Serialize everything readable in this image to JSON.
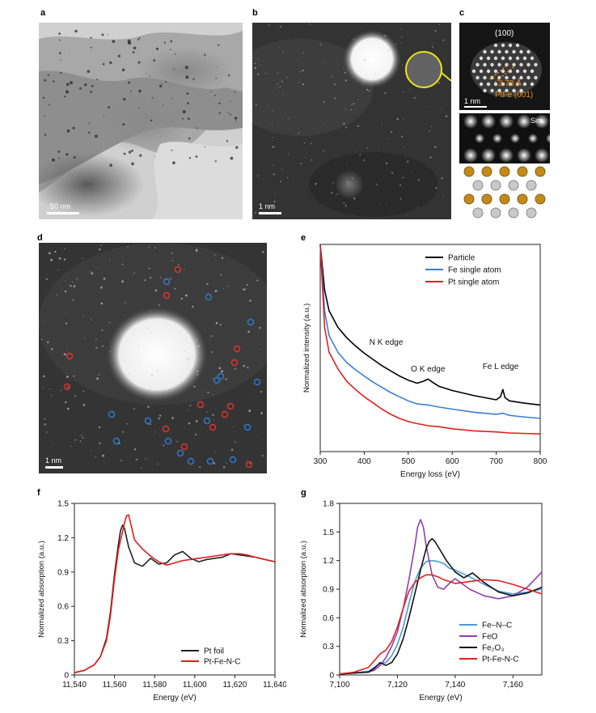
{
  "panels": {
    "a": {
      "label": "a",
      "scale_bar": "50 nm"
    },
    "b": {
      "label": "b",
      "scale_bar": "1 nm"
    },
    "c": {
      "label": "c",
      "top_label": "(100)",
      "spacing_label": "3.78 Å",
      "phase_label": "PtFe (001)",
      "scale_bar": "1 nm",
      "sim_label": "Sim."
    },
    "d": {
      "label": "d",
      "scale_bar": "1 nm"
    },
    "e": {
      "label": "e"
    },
    "f": {
      "label": "f"
    },
    "g": {
      "label": "g"
    }
  },
  "chart_data": [
    {
      "id": "e",
      "type": "line",
      "xlabel": "Energy loss (eV)",
      "ylabel": "Normalized intensity (a.u.)",
      "xlim": [
        300,
        800
      ],
      "xticks": [
        300,
        400,
        500,
        600,
        700,
        800
      ],
      "legend": "top-right",
      "annotations": [
        {
          "text": "N K edge",
          "x": 450
        },
        {
          "text": "O K edge",
          "x": 545
        },
        {
          "text": "Fe L edge",
          "x": 710
        }
      ],
      "series": [
        {
          "name": "Particle",
          "color": "#000000",
          "x": [
            300,
            310,
            320,
            340,
            360,
            380,
            400,
            420,
            440,
            460,
            480,
            500,
            520,
            535,
            545,
            555,
            570,
            600,
            650,
            700,
            710,
            715,
            720,
            730,
            760,
            800
          ],
          "y": [
            1.0,
            0.78,
            0.68,
            0.6,
            0.55,
            0.51,
            0.475,
            0.445,
            0.415,
            0.39,
            0.365,
            0.345,
            0.33,
            0.34,
            0.35,
            0.335,
            0.315,
            0.295,
            0.27,
            0.25,
            0.265,
            0.3,
            0.26,
            0.245,
            0.235,
            0.225
          ]
        },
        {
          "name": "Fe single atom",
          "color": "#3a7fd5",
          "x": [
            300,
            310,
            320,
            340,
            360,
            380,
            400,
            420,
            440,
            460,
            480,
            500,
            520,
            545,
            570,
            600,
            650,
            700,
            715,
            730,
            760,
            800
          ],
          "y": [
            1.0,
            0.68,
            0.56,
            0.48,
            0.43,
            0.395,
            0.365,
            0.335,
            0.31,
            0.285,
            0.265,
            0.245,
            0.23,
            0.225,
            0.215,
            0.205,
            0.19,
            0.18,
            0.185,
            0.175,
            0.168,
            0.16
          ]
        },
        {
          "name": "Pt single atom",
          "color": "#e0201f",
          "x": [
            300,
            310,
            320,
            340,
            360,
            380,
            400,
            420,
            440,
            460,
            480,
            500,
            520,
            545,
            570,
            600,
            650,
            700,
            730,
            760,
            800
          ],
          "y": [
            1.0,
            0.6,
            0.48,
            0.4,
            0.34,
            0.3,
            0.265,
            0.235,
            0.205,
            0.18,
            0.16,
            0.145,
            0.135,
            0.125,
            0.12,
            0.11,
            0.1,
            0.095,
            0.09,
            0.088,
            0.085
          ]
        }
      ]
    },
    {
      "id": "f",
      "type": "line",
      "xlabel": "Energy (eV)",
      "ylabel": "Normalized absorption (a.u.)",
      "xlim": [
        11540,
        11640
      ],
      "ylim": [
        0,
        1.5
      ],
      "xticks": [
        11540,
        11560,
        11580,
        11600,
        11620,
        11640
      ],
      "xticklabels": [
        "11,540",
        "11,560",
        "11,580",
        "11,600",
        "11,620",
        "11,640"
      ],
      "yticks": [
        0,
        0.3,
        0.6,
        0.9,
        1.2,
        1.5
      ],
      "legend": "bottom-right",
      "series": [
        {
          "name": "Pt foil",
          "color": "#222222",
          "x": [
            11540,
            11545,
            11550,
            11553,
            11556,
            11558,
            11560,
            11562,
            11563,
            11564,
            11565,
            11567,
            11570,
            11574,
            11578,
            11582,
            11586,
            11590,
            11594,
            11598,
            11602,
            11606,
            11610,
            11614,
            11618,
            11622,
            11626,
            11630,
            11635,
            11640
          ],
          "y": [
            0.02,
            0.04,
            0.09,
            0.16,
            0.32,
            0.55,
            0.88,
            1.15,
            1.26,
            1.31,
            1.28,
            1.12,
            0.98,
            0.95,
            1.02,
            0.97,
            0.98,
            1.05,
            1.08,
            1.02,
            0.99,
            1.01,
            1.02,
            1.03,
            1.06,
            1.05,
            1.04,
            1.03,
            1.01,
            0.99
          ]
        },
        {
          "name": "Pt-Fe-N-C",
          "color": "#e0201f",
          "x": [
            11540,
            11545,
            11550,
            11553,
            11556,
            11558,
            11560,
            11562,
            11564,
            11565,
            11566,
            11567,
            11568,
            11570,
            11574,
            11578,
            11582,
            11586,
            11590,
            11594,
            11598,
            11602,
            11606,
            11610,
            11614,
            11618,
            11622,
            11626,
            11630,
            11635,
            11640
          ],
          "y": [
            0.02,
            0.04,
            0.09,
            0.16,
            0.3,
            0.52,
            0.84,
            1.1,
            1.25,
            1.33,
            1.39,
            1.4,
            1.33,
            1.18,
            1.1,
            1.04,
            0.99,
            0.96,
            0.98,
            1.0,
            1.01,
            1.02,
            1.03,
            1.04,
            1.05,
            1.06,
            1.06,
            1.05,
            1.03,
            1.01,
            0.99
          ]
        }
      ]
    },
    {
      "id": "g",
      "type": "line",
      "xlabel": "Energy (eV)",
      "ylabel": "Normalized absorption (a.u.)",
      "xlim": [
        7100,
        7170
      ],
      "ylim": [
        0,
        1.8
      ],
      "xticks": [
        7100,
        7120,
        7140,
        7160
      ],
      "xticklabels": [
        "7,100",
        "7,120",
        "7,140",
        "7,160"
      ],
      "yticks": [
        0,
        0.3,
        0.6,
        0.9,
        1.2,
        1.5,
        1.8
      ],
      "legend": "bottom-right",
      "series": [
        {
          "name": "Fe–N–C",
          "color": "#4a9ad8",
          "x": [
            7100,
            7105,
            7110,
            7112,
            7114,
            7116,
            7118,
            7120,
            7122,
            7124,
            7126,
            7128,
            7130,
            7132,
            7134,
            7136,
            7138,
            7140,
            7145,
            7150,
            7155,
            7160,
            7165,
            7170
          ],
          "y": [
            0.01,
            0.02,
            0.04,
            0.08,
            0.12,
            0.13,
            0.2,
            0.32,
            0.5,
            0.75,
            0.98,
            1.12,
            1.19,
            1.2,
            1.19,
            1.17,
            1.12,
            1.1,
            1.03,
            0.95,
            0.88,
            0.85,
            0.87,
            0.9
          ]
        },
        {
          "name": "FeO",
          "color": "#8e3fb0",
          "x": [
            7100,
            7105,
            7110,
            7112,
            7114,
            7116,
            7118,
            7120,
            7122,
            7124,
            7126,
            7127,
            7128,
            7129,
            7130,
            7132,
            7134,
            7136,
            7138,
            7140,
            7145,
            7150,
            7155,
            7160,
            7165,
            7170
          ],
          "y": [
            0.01,
            0.02,
            0.03,
            0.05,
            0.1,
            0.18,
            0.3,
            0.45,
            0.7,
            1.0,
            1.35,
            1.55,
            1.63,
            1.55,
            1.35,
            1.05,
            0.92,
            0.9,
            0.96,
            1.01,
            0.9,
            0.83,
            0.8,
            0.83,
            0.92,
            1.08
          ]
        },
        {
          "name": "Fe₂O₃",
          "color": "#111111",
          "x": [
            7100,
            7105,
            7110,
            7112,
            7114,
            7116,
            7118,
            7120,
            7122,
            7124,
            7126,
            7128,
            7130,
            7131,
            7132,
            7133,
            7135,
            7137,
            7140,
            7143,
            7146,
            7150,
            7155,
            7160,
            7165,
            7170
          ],
          "y": [
            0.01,
            0.02,
            0.03,
            0.07,
            0.13,
            0.1,
            0.13,
            0.22,
            0.38,
            0.6,
            0.85,
            1.1,
            1.33,
            1.4,
            1.43,
            1.4,
            1.3,
            1.2,
            1.08,
            1.02,
            1.07,
            0.97,
            0.87,
            0.83,
            0.86,
            0.92
          ]
        },
        {
          "name": "Pt-Fe-N-C",
          "color": "#e0201f",
          "x": [
            7100,
            7105,
            7110,
            7112,
            7114,
            7116,
            7118,
            7120,
            7122,
            7124,
            7126,
            7128,
            7130,
            7132,
            7134,
            7136,
            7140,
            7145,
            7150,
            7155,
            7160,
            7165,
            7170
          ],
          "y": [
            0.01,
            0.03,
            0.08,
            0.15,
            0.22,
            0.26,
            0.35,
            0.5,
            0.7,
            0.88,
            0.97,
            1.02,
            1.05,
            1.05,
            1.03,
            1.0,
            0.96,
            0.98,
            1.0,
            0.99,
            0.95,
            0.9,
            0.85
          ]
        }
      ]
    }
  ]
}
